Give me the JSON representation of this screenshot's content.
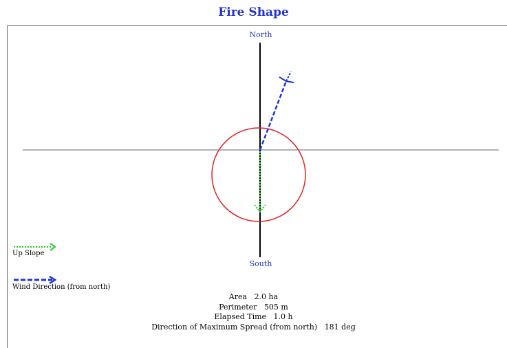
{
  "title": "Fire Shape",
  "compass": {
    "north": "North",
    "south": "South"
  },
  "legend": {
    "upslope": {
      "label": "Up Slope",
      "color": "#22cc22",
      "style": "dotted"
    },
    "wind": {
      "label": "Wind Direction (from north)",
      "color": "#1a33dd",
      "style": "dashed"
    }
  },
  "stats": {
    "area_label": "Area",
    "area_value": "2.0 ha",
    "perimeter_label": "Perimeter",
    "perimeter_value": "505 m",
    "elapsed_label": "Elapsed Time",
    "elapsed_value": "1.0 h",
    "direction_label": "Direction of Maximum Spread (from north)",
    "direction_value": "181 deg"
  },
  "colors": {
    "fire_perimeter": "#e02020",
    "axis_vertical": "#000000",
    "axis_horizontal": "#999999",
    "title": "#2233cc"
  }
}
